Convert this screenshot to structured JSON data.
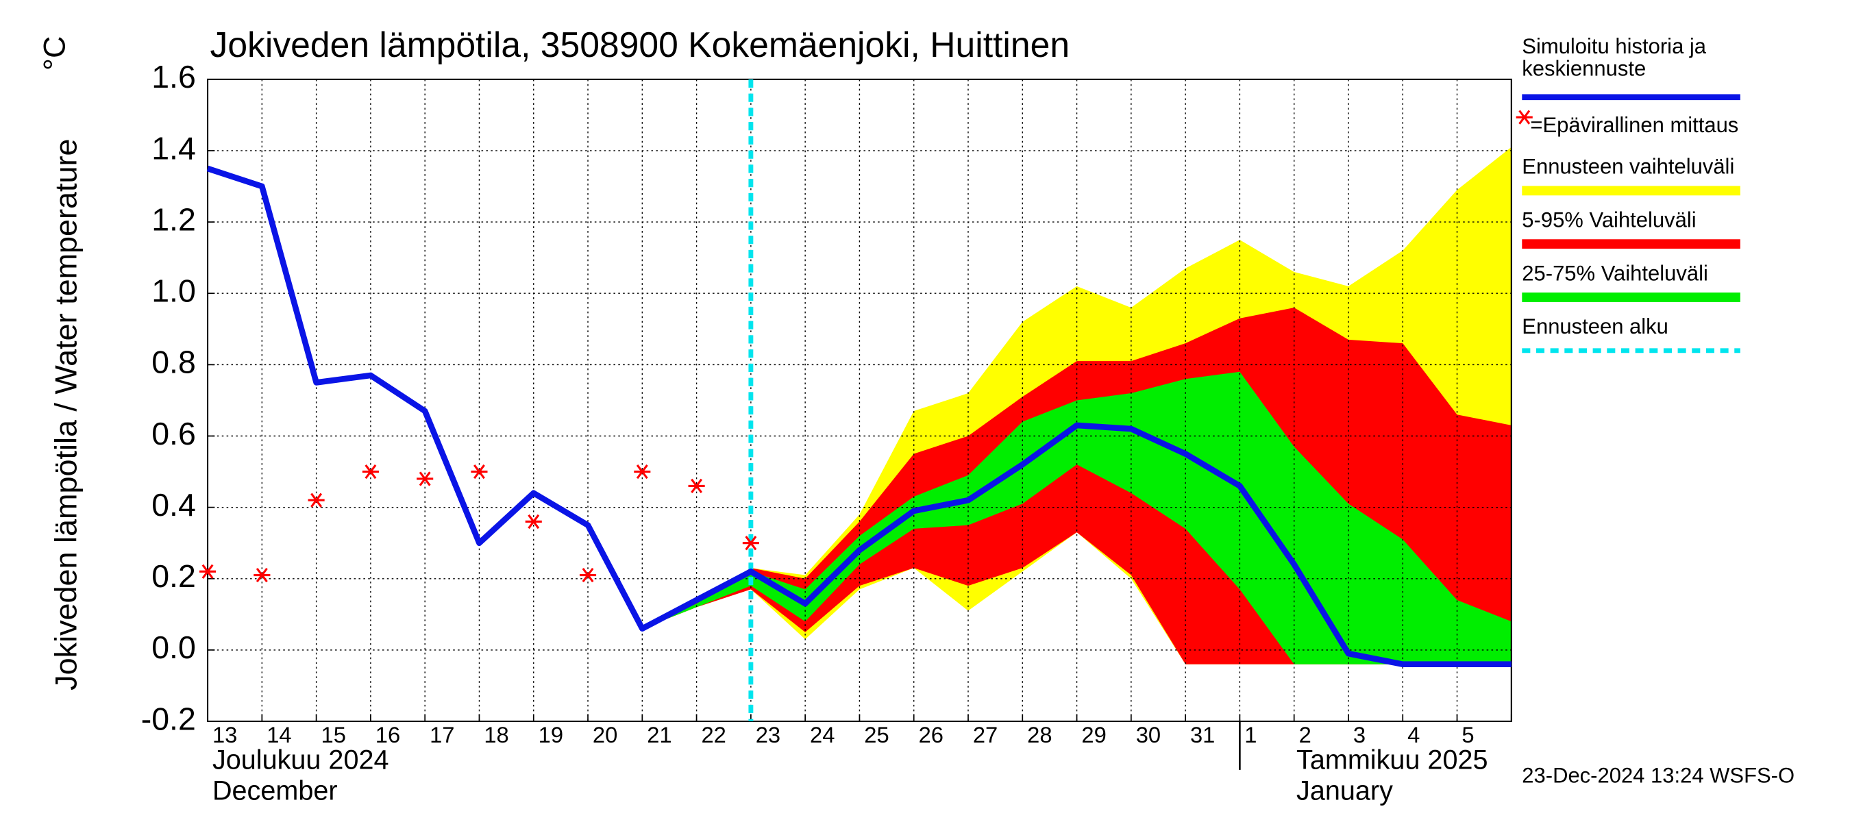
{
  "chart_data": {
    "type": "line",
    "title": "Jokiveden lämpötila, 3508900 Kokemäenjoki, Huittinen",
    "y_label": "Jokiveden lämpötila / Water temperature",
    "y_unit": "°C",
    "categories": [
      "13",
      "14",
      "15",
      "16",
      "17",
      "18",
      "19",
      "20",
      "21",
      "22",
      "23",
      "24",
      "25",
      "26",
      "27",
      "28",
      "29",
      "30",
      "31",
      "1",
      "2",
      "3",
      "4",
      "5",
      null
    ],
    "month_labels": [
      {
        "index": 0,
        "lines": [
          "Joulukuu  2024",
          "December"
        ]
      },
      {
        "index": 19,
        "lines": [
          "Tammikuu  2025",
          "January"
        ]
      }
    ],
    "ylim": [
      -0.2,
      1.6
    ],
    "yticks": [
      -0.2,
      {
        "value": 0,
        "label": "0.0"
      },
      0.2,
      0.4,
      0.6,
      0.8,
      {
        "value": 1,
        "label": "1.0"
      },
      1.2,
      1.4,
      1.6
    ],
    "grid": true,
    "series": [
      {
        "name": "Simuloitu historia ja keskiennuste",
        "color": "#0a14e6",
        "values": [
          1.35,
          1.3,
          0.75,
          0.77,
          0.67,
          0.3,
          0.44,
          0.35,
          0.06,
          0.14,
          0.22,
          0.13,
          0.28,
          0.39,
          0.42,
          0.52,
          0.63,
          0.62,
          0.55,
          0.46,
          0.24,
          -0.01,
          -0.04,
          -0.04,
          -0.04
        ]
      },
      {
        "name": "=Epävirallinen mittaus",
        "color": "#ff0000",
        "marker": "star",
        "values": [
          0.22,
          0.21,
          0.42,
          0.5,
          0.48,
          0.5,
          0.36,
          0.21,
          0.5,
          0.46,
          0.3,
          null,
          null,
          null,
          null,
          null,
          null,
          null,
          null,
          null,
          null,
          null,
          null,
          null,
          null
        ]
      }
    ],
    "bands": [
      {
        "name": "Ennusteen vaihteluväli",
        "color": "#ffff00",
        "upper": [
          null,
          null,
          null,
          null,
          null,
          null,
          null,
          null,
          0.06,
          0.14,
          0.23,
          0.21,
          0.38,
          0.67,
          0.72,
          0.92,
          1.02,
          0.96,
          1.07,
          1.15,
          1.06,
          1.02,
          1.12,
          1.29,
          1.41
        ],
        "lower": [
          null,
          null,
          null,
          null,
          null,
          null,
          null,
          null,
          0.06,
          0.12,
          0.17,
          0.03,
          0.17,
          0.23,
          0.11,
          0.22,
          0.33,
          0.2,
          -0.04,
          -0.04,
          -0.04,
          -0.04,
          -0.04,
          -0.04,
          -0.04
        ]
      },
      {
        "name": "5-95% Vaihteluväli",
        "color": "#ff0000",
        "upper": [
          null,
          null,
          null,
          null,
          null,
          null,
          null,
          null,
          0.06,
          0.14,
          0.23,
          0.2,
          0.36,
          0.55,
          0.6,
          0.71,
          0.81,
          0.81,
          0.86,
          0.93,
          0.96,
          0.87,
          0.86,
          0.66,
          0.63
        ],
        "lower": [
          null,
          null,
          null,
          null,
          null,
          null,
          null,
          null,
          0.06,
          0.12,
          0.17,
          0.05,
          0.18,
          0.23,
          0.18,
          0.23,
          0.33,
          0.21,
          -0.04,
          -0.04,
          -0.04,
          -0.04,
          -0.04,
          -0.04,
          -0.04
        ]
      },
      {
        "name": "25-75% Vaihteluväli",
        "color": "#00ee00",
        "upper": [
          null,
          null,
          null,
          null,
          null,
          null,
          null,
          null,
          0.06,
          0.13,
          0.22,
          0.17,
          0.32,
          0.43,
          0.49,
          0.64,
          0.7,
          0.72,
          0.76,
          0.78,
          0.57,
          0.41,
          0.31,
          0.14,
          0.08
        ],
        "lower": [
          null,
          null,
          null,
          null,
          null,
          null,
          null,
          null,
          0.06,
          0.12,
          0.18,
          0.08,
          0.24,
          0.34,
          0.35,
          0.41,
          0.52,
          0.44,
          0.34,
          0.17,
          -0.04,
          -0.04,
          -0.04,
          -0.04,
          -0.04
        ]
      }
    ],
    "forecast_start": {
      "name": "Ennusteen alku",
      "color": "#00e5ee",
      "x": 10
    },
    "footer": "23-Dec-2024 13:24 WSFS-O"
  }
}
